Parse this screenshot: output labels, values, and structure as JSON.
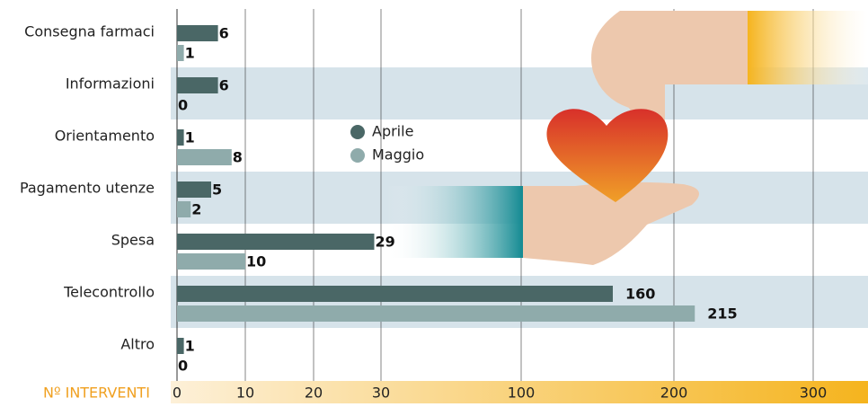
{
  "chart_data": {
    "type": "bar",
    "orientation": "horizontal",
    "x_axis_label": "Nº INTERVENTI",
    "categories": [
      "Consegna farmaci",
      "Informazioni",
      "Orientamento",
      "Pagamento utenze",
      "Spesa",
      "Telecontrollo",
      "Altro"
    ],
    "series": [
      {
        "name": "Aprile",
        "color": "#4a6766",
        "values": [
          6,
          6,
          1,
          5,
          29,
          160,
          1
        ]
      },
      {
        "name": "Maggio",
        "color": "#8fabab",
        "values": [
          1,
          0,
          8,
          2,
          10,
          215,
          0
        ]
      }
    ],
    "xlim": [
      0,
      300
    ],
    "xticks": [
      0,
      10,
      20,
      30,
      100,
      200,
      300
    ],
    "grid": true
  }
}
